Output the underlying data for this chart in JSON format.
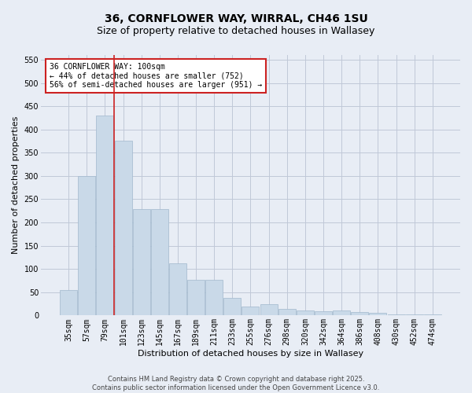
{
  "title": "36, CORNFLOWER WAY, WIRRAL, CH46 1SU",
  "subtitle": "Size of property relative to detached houses in Wallasey",
  "xlabel": "Distribution of detached houses by size in Wallasey",
  "ylabel": "Number of detached properties",
  "categories": [
    "35sqm",
    "57sqm",
    "79sqm",
    "101sqm",
    "123sqm",
    "145sqm",
    "167sqm",
    "189sqm",
    "211sqm",
    "233sqm",
    "255sqm",
    "276sqm",
    "298sqm",
    "320sqm",
    "342sqm",
    "364sqm",
    "386sqm",
    "408sqm",
    "430sqm",
    "452sqm",
    "474sqm"
  ],
  "values": [
    55,
    300,
    430,
    375,
    228,
    228,
    113,
    77,
    77,
    38,
    20,
    25,
    14,
    10,
    9,
    10,
    7,
    5,
    2,
    2,
    3
  ],
  "bar_color": "#c9d9e8",
  "bar_edge_color": "#a0b8cc",
  "grid_color": "#c0c8d8",
  "background_color": "#e8edf5",
  "vline_color": "#cc2222",
  "annotation_text": "36 CORNFLOWER WAY: 100sqm\n← 44% of detached houses are smaller (752)\n56% of semi-detached houses are larger (951) →",
  "annotation_box_color": "#ffffff",
  "annotation_border_color": "#cc2222",
  "ylim": [
    0,
    560
  ],
  "yticks": [
    0,
    50,
    100,
    150,
    200,
    250,
    300,
    350,
    400,
    450,
    500,
    550
  ],
  "title_fontsize": 10,
  "subtitle_fontsize": 9,
  "xlabel_fontsize": 8,
  "ylabel_fontsize": 8,
  "tick_fontsize": 7,
  "ann_fontsize": 7,
  "footer_text": "Contains HM Land Registry data © Crown copyright and database right 2025.\nContains public sector information licensed under the Open Government Licence v3.0.",
  "footer_fontsize": 6
}
